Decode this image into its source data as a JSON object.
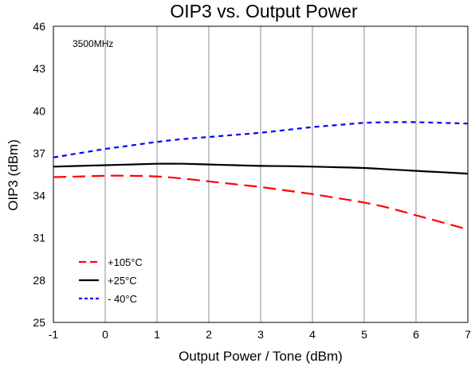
{
  "chart_data": {
    "type": "line",
    "title": "OIP3 vs. Output Power",
    "xlabel": "Output Power / Tone (dBm)",
    "ylabel": "OIP3 (dBm)",
    "annotation": "3500MHz",
    "xlim": [
      -1,
      7
    ],
    "ylim": [
      25,
      46
    ],
    "xticks": [
      -1,
      0,
      1,
      2,
      3,
      4,
      5,
      6,
      7
    ],
    "yticks": [
      25,
      28,
      31,
      34,
      37,
      40,
      43,
      46
    ],
    "grid": "vertical",
    "legend_position": "bottom-left",
    "series": [
      {
        "name": "+105°C",
        "color": "#ff0000",
        "dash": "long-dash",
        "x": [
          -1,
          -0.5,
          0,
          0.5,
          1,
          1.5,
          2,
          2.5,
          3,
          3.5,
          4,
          4.5,
          5,
          5.5,
          6,
          6.5,
          7
        ],
        "values": [
          35.3,
          35.35,
          35.4,
          35.4,
          35.35,
          35.2,
          35.0,
          34.8,
          34.6,
          34.35,
          34.1,
          33.8,
          33.5,
          33.1,
          32.6,
          32.1,
          31.6
        ]
      },
      {
        "name": "+25°C",
        "color": "#000000",
        "dash": "solid",
        "x": [
          -1,
          -0.5,
          0,
          0.5,
          1,
          1.5,
          2,
          2.5,
          3,
          3.5,
          4,
          4.5,
          5,
          5.5,
          6,
          6.5,
          7
        ],
        "values": [
          36.05,
          36.1,
          36.15,
          36.2,
          36.25,
          36.25,
          36.2,
          36.15,
          36.1,
          36.08,
          36.05,
          36.0,
          35.95,
          35.85,
          35.75,
          35.65,
          35.55
        ]
      },
      {
        "name": "- 40°C",
        "color": "#0000ff",
        "dash": "short-dash",
        "x": [
          -1,
          -0.5,
          0,
          0.5,
          1,
          1.5,
          2,
          2.5,
          3,
          3.5,
          4,
          4.5,
          5,
          5.5,
          6,
          6.5,
          7
        ],
        "values": [
          36.7,
          37.0,
          37.3,
          37.55,
          37.8,
          38.0,
          38.15,
          38.3,
          38.45,
          38.65,
          38.85,
          39.0,
          39.15,
          39.2,
          39.2,
          39.15,
          39.1
        ]
      }
    ]
  }
}
